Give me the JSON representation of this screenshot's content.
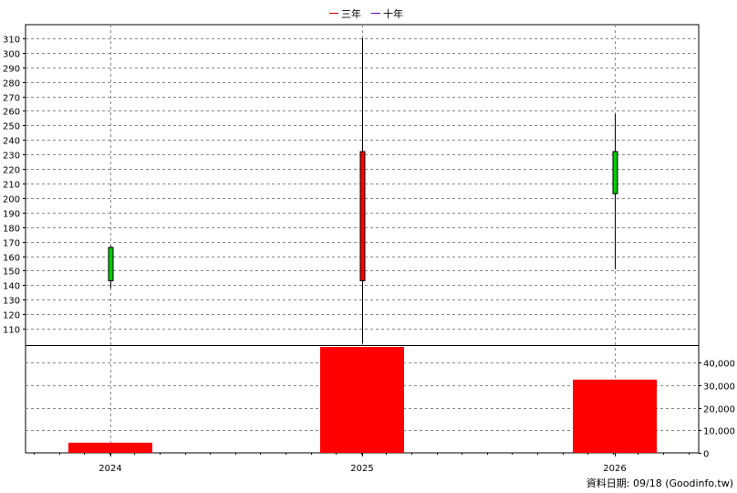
{
  "legend": [
    {
      "label": "三年",
      "color": "#cc0000"
    },
    {
      "label": "十年",
      "color": "#6600cc"
    }
  ],
  "footer": "資料日期: 09/18  (Goodinfo.tw)",
  "chart_data": {
    "type": "candlestick",
    "categories": [
      "2024",
      "2025",
      "2026"
    ],
    "price": {
      "ylim": [
        100,
        315
      ],
      "ticks": [
        110,
        120,
        130,
        140,
        150,
        160,
        170,
        180,
        190,
        200,
        210,
        220,
        230,
        240,
        250,
        260,
        270,
        280,
        290,
        300,
        310
      ],
      "candles": [
        {
          "open": 143,
          "close": 166,
          "high": 167,
          "low": 138,
          "color": "#00cc00"
        },
        {
          "open": 232,
          "close": 143,
          "high": 310,
          "low": 100,
          "color": "#ff0000"
        },
        {
          "open": 203,
          "close": 232,
          "high": 258,
          "low": 151,
          "color": "#00cc00"
        }
      ]
    },
    "volume": {
      "ylim": [
        0,
        47000
      ],
      "ticks": [
        0,
        10000,
        20000,
        30000,
        40000
      ],
      "tick_labels": [
        "0",
        "10,000",
        "20,000",
        "30,000",
        "40,000"
      ],
      "values": [
        4500,
        47000,
        32500
      ],
      "color": "#ff0000"
    },
    "grid": true,
    "legend_position": "top-center"
  }
}
